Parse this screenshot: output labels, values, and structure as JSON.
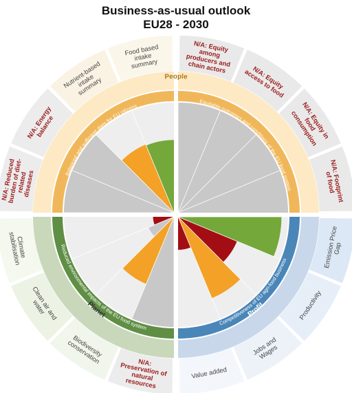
{
  "title": {
    "line1": "Business-as-usual outlook",
    "line2": "EU28 - 2030"
  },
  "dimensions": [
    {
      "id": "people",
      "label": "People",
      "text_color": "#b07a16"
    },
    {
      "id": "profit",
      "label": "Profit",
      "text_color": "#ffffff"
    },
    {
      "id": "planet",
      "label": "Planet",
      "text_color": "#2f2f2f"
    }
  ],
  "objectives": [
    {
      "id": "balanced",
      "label": "Balanced and sufficient diets for EU citizens"
    },
    {
      "id": "equitable",
      "label": "Equitable outcomes and conditions of the EU food system"
    },
    {
      "id": "competitive",
      "label": "Competitiveness of EU agri-food business"
    },
    {
      "id": "environment",
      "label": "Reduced environmental impacts of the EU food system"
    }
  ],
  "indicators": [
    {
      "lines": [
        "N/A: Equity",
        "among",
        "producers and",
        "chain actors"
      ]
    },
    {
      "lines": [
        "N/A: Equity",
        "access to food"
      ]
    },
    {
      "lines": [
        "N/A: Equity in",
        "food",
        "consumption"
      ]
    },
    {
      "lines": [
        "N/A: Footprint",
        "of food"
      ]
    },
    {
      "lines": [
        "Emission Price",
        "Gap"
      ]
    },
    {
      "lines": [
        "Productivity"
      ]
    },
    {
      "lines": [
        "Jobs and",
        "Wages"
      ]
    },
    {
      "lines": [
        "Value added"
      ]
    },
    {
      "lines": [
        "N/A:",
        "Preservation of",
        "natural",
        "resources"
      ]
    },
    {
      "lines": [
        "Biodiversity",
        "conservation"
      ]
    },
    {
      "lines": [
        "Clean air and",
        "water"
      ]
    },
    {
      "lines": [
        "Climate",
        "stabilisation"
      ]
    },
    {
      "lines": [
        "N/A: Reduced",
        "burden of diet-",
        "related",
        "diseases"
      ]
    },
    {
      "lines": [
        "N/A: Energy",
        "balance"
      ]
    },
    {
      "lines": [
        "Nutrient-based",
        "intake",
        "summary"
      ]
    },
    {
      "lines": [
        "Food based",
        "intake",
        "summary"
      ]
    }
  ],
  "colors": {
    "people": "#f0b75a",
    "people_light": "#fde9c4",
    "profit": "#4a86b8",
    "profit_light": "#c8d8ea",
    "planet": "#5f8e45",
    "planet_light": "#c9d8bb",
    "na_text": "#9b1c1c",
    "indicator_text": "#444444",
    "good": "#74a83a",
    "medium": "#f3a127",
    "bad": "#a30e14",
    "neutral": "#c8c8c8",
    "empty": "#eeeeee"
  },
  "chart_data": {
    "type": "polar-bar",
    "scale": "unlabeled",
    "performance": [
      {
        "indicator": "Food based intake summary",
        "value": 0.66,
        "rating": "good"
      },
      {
        "indicator": "Nutrient-based intake summary",
        "value": 0.67,
        "rating": "medium"
      },
      {
        "indicator": "N/A: Energy balance",
        "value": 1.0,
        "rating": "neutral"
      },
      {
        "indicator": "N/A: Reduced burden of diet-related diseases",
        "value": 1.0,
        "rating": "neutral"
      },
      {
        "indicator": "N/A: Equity among producers and chain actors",
        "value": 1.0,
        "rating": "neutral"
      },
      {
        "indicator": "N/A: Equity access to food",
        "value": 1.0,
        "rating": "neutral"
      },
      {
        "indicator": "N/A: Equity in food consumption",
        "value": 1.0,
        "rating": "neutral"
      },
      {
        "indicator": "N/A: Footprint of food",
        "value": 1.0,
        "rating": "neutral"
      },
      {
        "indicator": "Emission Price Gap",
        "value": 0.94,
        "rating": "good"
      },
      {
        "indicator": "Productivity",
        "value": 0.58,
        "rating": "bad"
      },
      {
        "indicator": "Jobs and Wages",
        "value": 0.8,
        "rating": "medium"
      },
      {
        "indicator": "Value added",
        "value": 0.3,
        "rating": "bad"
      },
      {
        "indicator": "N/A: Preservation of natural resources",
        "value": 1.0,
        "rating": "neutral"
      },
      {
        "indicator": "Biodiversity conservation",
        "value": 0.66,
        "rating": "medium"
      },
      {
        "indicator": "Clean air and water",
        "value": 0.25,
        "rating": "neutral"
      },
      {
        "indicator": "Climate stabilisation",
        "value": 0.19,
        "rating": "bad"
      }
    ]
  }
}
